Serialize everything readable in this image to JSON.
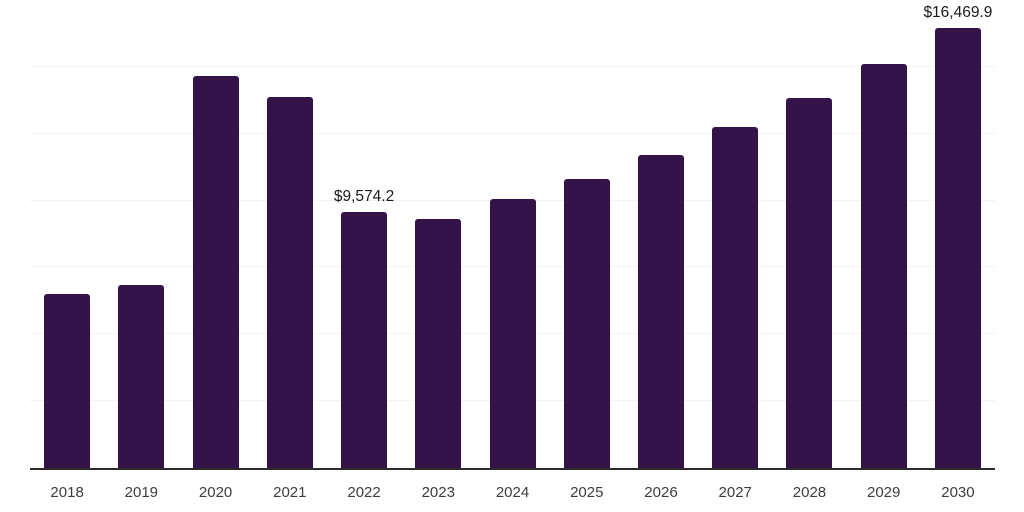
{
  "chart_data": {
    "type": "bar",
    "title": "",
    "xlabel": "",
    "ylabel": "",
    "categories": [
      "2018",
      "2019",
      "2020",
      "2021",
      "2022",
      "2023",
      "2024",
      "2025",
      "2026",
      "2027",
      "2028",
      "2029",
      "2030"
    ],
    "values": [
      6490,
      6860,
      14660,
      13870,
      9574.2,
      9300,
      10050,
      10820,
      11690,
      12750,
      13840,
      15110,
      16469.9
    ],
    "data_labels": [
      "",
      "",
      "",
      "",
      "$9,574.2",
      "",
      "",
      "",
      "",
      "",
      "",
      "",
      "$16,469.9"
    ],
    "ylim": [
      0,
      17500
    ],
    "gridline_values": [
      2500,
      5000,
      7500,
      10000,
      12500,
      15000,
      17500
    ],
    "grid": true,
    "legend": "none",
    "colors": {
      "bar": "#341349",
      "axis_line": "#2b2b2b",
      "gridline": "#f2f2f2",
      "data_label_text": "#1a1a1a",
      "tick_label_text": "#3d3d3d",
      "background": "#ffffff"
    }
  }
}
